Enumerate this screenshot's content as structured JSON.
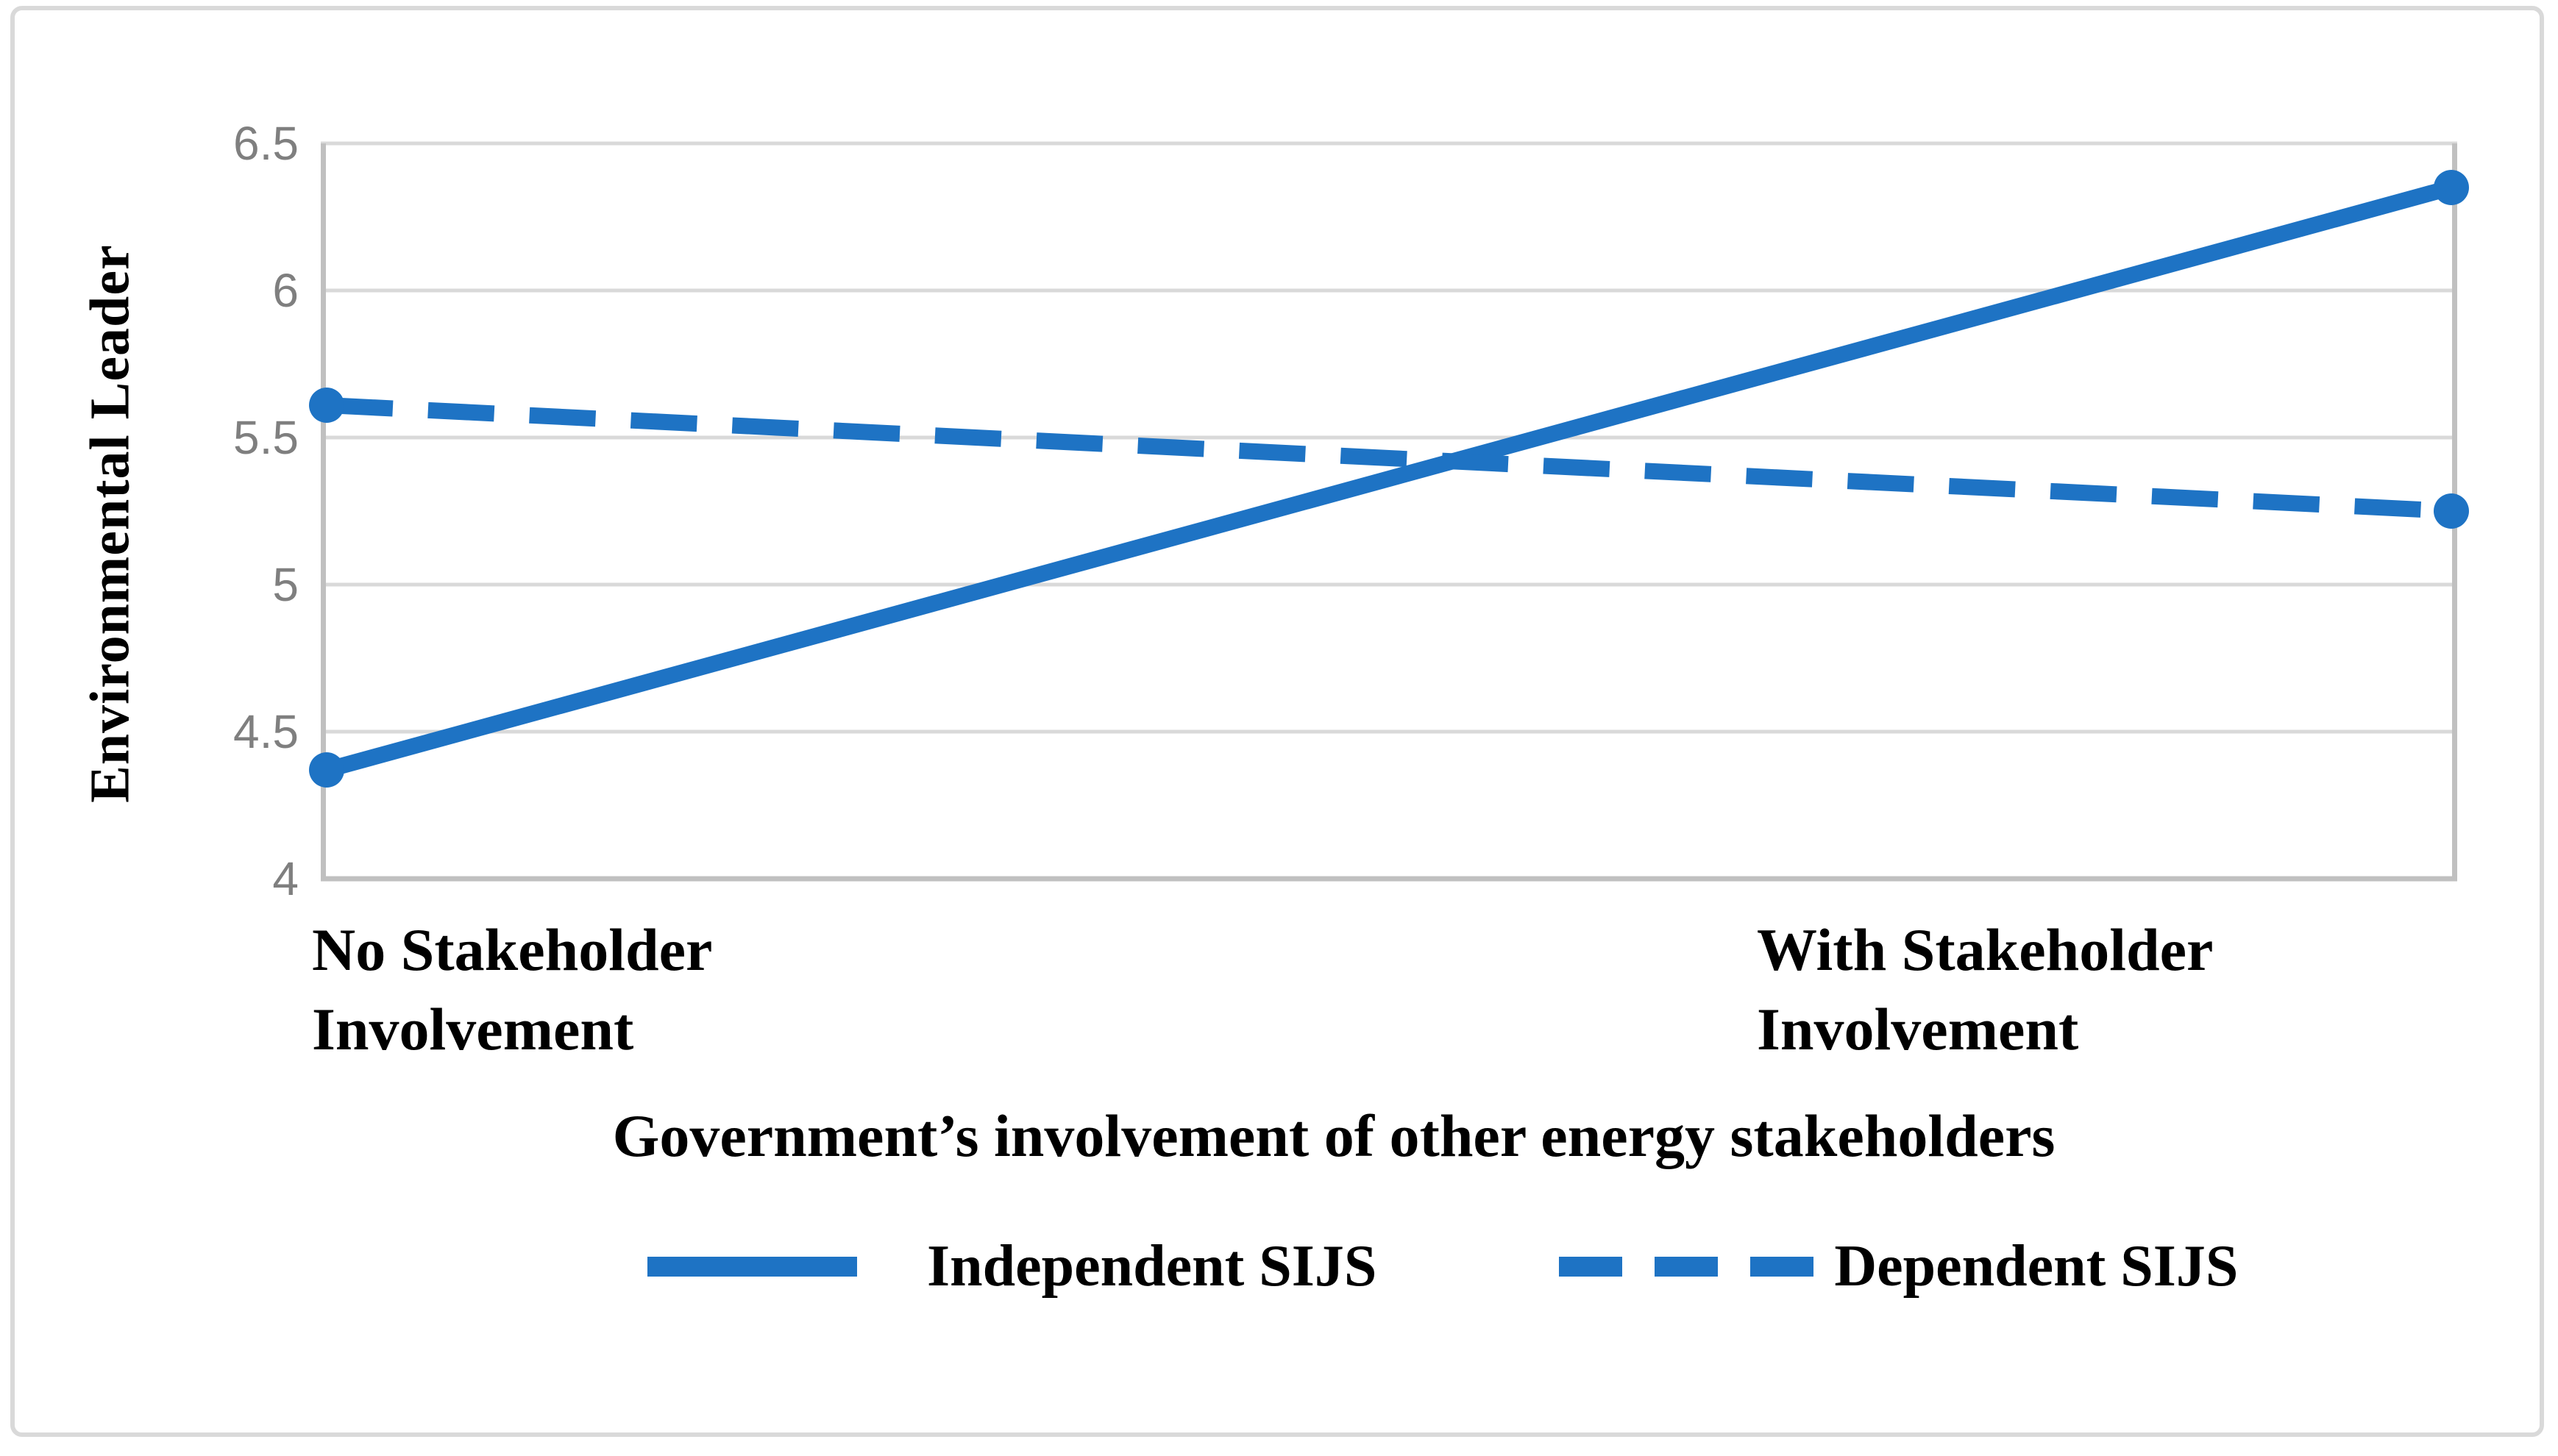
{
  "figure": {
    "background": "#ffffff",
    "border_color": "#d9d9d9"
  },
  "chart_data": {
    "type": "line",
    "title": "",
    "ylabel": "Environmental Leader",
    "xlabel": "Government’s involvement of other energy stakeholders",
    "categories": [
      "No Stakeholder Involvement",
      "With Stakeholder Involvement"
    ],
    "category_label_lines": {
      "left": [
        "No Stakeholder",
        "Involvement"
      ],
      "right": [
        "With Stakeholder",
        "Involvement"
      ]
    },
    "ylim": [
      4,
      6.5
    ],
    "ytick_values": [
      6.5,
      6,
      5.5,
      5,
      4.5,
      4
    ],
    "ytick_labels": [
      "6.5",
      "6",
      "5.5",
      "5",
      "4.5",
      "4"
    ],
    "grid": "horizontal",
    "legend_position": "bottom",
    "series": [
      {
        "name": "Independent SIJS",
        "line_style": "solid",
        "color": "#1e73c4",
        "values": [
          4.37,
          6.35
        ]
      },
      {
        "name": "Dependent SIJS",
        "line_style": "dashed",
        "color": "#1e73c4",
        "values": [
          5.61,
          5.25
        ]
      }
    ],
    "colors": {
      "grid": "#d9d9d9",
      "axis": "#c0c0c0",
      "tick_text": "#7f7f7f",
      "label_text": "#000000"
    }
  }
}
